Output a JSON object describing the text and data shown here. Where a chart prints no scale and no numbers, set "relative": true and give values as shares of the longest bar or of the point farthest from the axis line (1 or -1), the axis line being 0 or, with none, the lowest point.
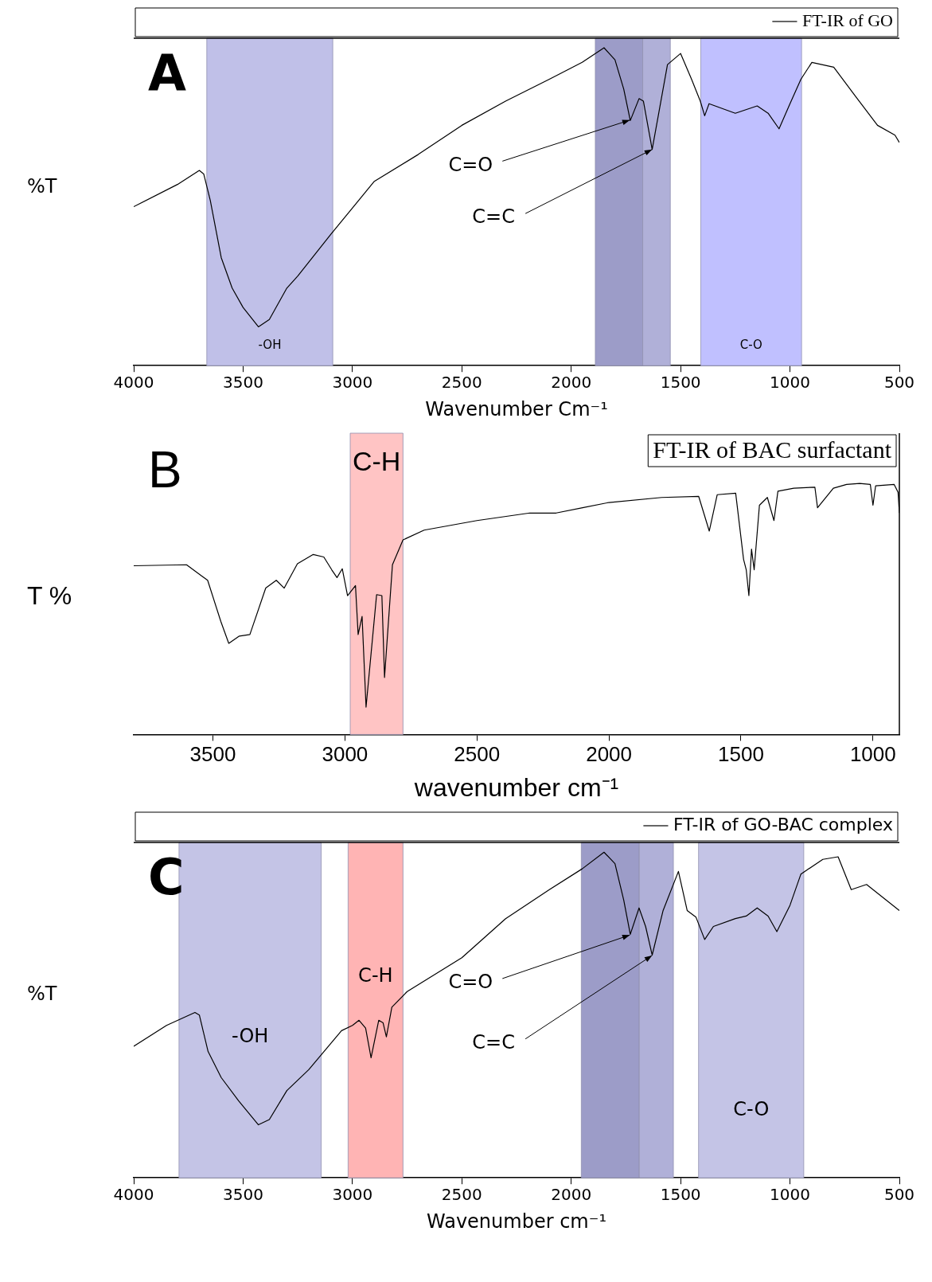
{
  "chart_data": [
    {
      "type": "line",
      "title": "A",
      "xlabel": "Wavenumber Cm⁻¹",
      "ylabel": "%T",
      "relative": true,
      "xlim": [
        4000,
        500
      ],
      "xticks": [
        4000,
        3500,
        3000,
        2500,
        2000,
        1500,
        1000,
        500
      ],
      "legend": "top right",
      "series": [
        {
          "name": "FT-IR of GO",
          "color": "#000000",
          "x": [
            4000,
            3800,
            3700,
            3680,
            3650,
            3600,
            3550,
            3500,
            3430,
            3380,
            3300,
            3250,
            3100,
            2900,
            2700,
            2500,
            2300,
            2100,
            1950,
            1850,
            1800,
            1760,
            1730,
            1690,
            1670,
            1630,
            1600,
            1560,
            1500,
            1450,
            1410,
            1390,
            1370,
            1250,
            1150,
            1100,
            1050,
            1000,
            950,
            900,
            800,
            700,
            600,
            520,
            500
          ],
          "values": [
            0.5,
            0.57,
            0.614,
            0.603,
            0.52,
            0.34,
            0.244,
            0.183,
            0.122,
            0.145,
            0.244,
            0.282,
            0.412,
            0.58,
            0.664,
            0.756,
            0.832,
            0.901,
            0.954,
            1,
            0.962,
            0.87,
            0.771,
            0.84,
            0.832,
            0.68,
            0.794,
            0.947,
            0.982,
            0.901,
            0.832,
            0.786,
            0.824,
            0.794,
            0.817,
            0.794,
            0.745,
            0.824,
            0.901,
            0.954,
            0.939,
            0.847,
            0.756,
            0.725,
            0.702
          ]
        }
      ],
      "bands": [
        {
          "axis": "x",
          "from": 3666,
          "to": 3090,
          "label": "-OH",
          "color": "#c0c0e8"
        },
        {
          "axis": "x",
          "from": 1890,
          "to": 1673,
          "color": "#9c9cc8"
        },
        {
          "axis": "x",
          "from": 1673,
          "to": 1547,
          "color": "#b0b0d8"
        },
        {
          "axis": "x",
          "from": 1408,
          "to": 947,
          "label": "C-O",
          "color": "#c0c0ff"
        }
      ],
      "annotations": [
        "C=O",
        "C=C"
      ]
    },
    {
      "type": "line",
      "title": "B",
      "xlabel": "wavenumber cm⁻¹",
      "ylabel": "T %",
      "relative": true,
      "xlim": [
        3800,
        900
      ],
      "xticks": [
        3500,
        3000,
        2500,
        2000,
        1500,
        1000
      ],
      "series": [
        {
          "color": "#000000",
          "x": [
            3800,
            3600,
            3520,
            3470,
            3440,
            3400,
            3360,
            3300,
            3260,
            3230,
            3180,
            3120,
            3080,
            3050,
            3030,
            3010,
            2990,
            2960,
            2950,
            2935,
            2920,
            2880,
            2860,
            2850,
            2820,
            2780,
            2700,
            2500,
            2300,
            2200,
            2100,
            2000,
            1800,
            1660,
            1620,
            1590,
            1520,
            1490,
            1480,
            1470,
            1460,
            1450,
            1430,
            1400,
            1375,
            1360,
            1300,
            1220,
            1210,
            1150,
            1100,
            1050,
            1010,
            1000,
            990,
            920,
            905,
            900
          ],
          "values": [
            0.672,
            0.676,
            0.614,
            0.45,
            0.363,
            0.392,
            0.398,
            0.583,
            0.614,
            0.583,
            0.68,
            0.717,
            0.707,
            0.656,
            0.625,
            0.66,
            0.553,
            0.593,
            0.398,
            0.47,
            0.109,
            0.557,
            0.553,
            0.227,
            0.676,
            0.775,
            0.814,
            0.852,
            0.882,
            0.882,
            0.903,
            0.924,
            0.944,
            0.948,
            0.81,
            0.955,
            0.961,
            0.697,
            0.656,
            0.553,
            0.738,
            0.656,
            0.913,
            0.944,
            0.852,
            0.969,
            0.981,
            0.985,
            0.903,
            0.981,
            0.996,
            1,
            0.996,
            0.913,
            0.99,
            0.996,
            0.965,
            0.882
          ]
        }
      ],
      "bands": [
        {
          "axis": "x",
          "from": 2980,
          "to": 2780,
          "label": "C-H",
          "color": "#ffc4c4"
        }
      ],
      "annotations": [
        "FT-IR of BAC surfactant"
      ]
    },
    {
      "type": "line",
      "title": "C",
      "xlabel": "Wavenumber cm⁻¹",
      "ylabel": "%T",
      "relative": true,
      "xlim": [
        4000,
        500
      ],
      "xticks": [
        4000,
        3500,
        3000,
        2500,
        2000,
        1500,
        1000,
        500
      ],
      "legend": "top right",
      "series": [
        {
          "name": "FT-IR of GO-BAC complex",
          "color": "#000000",
          "x": [
            4000,
            3850,
            3720,
            3700,
            3660,
            3600,
            3520,
            3430,
            3380,
            3300,
            3200,
            3050,
            3000,
            2970,
            2940,
            2915,
            2880,
            2860,
            2845,
            2820,
            2750,
            2500,
            2300,
            2100,
            1950,
            1850,
            1800,
            1760,
            1730,
            1690,
            1660,
            1630,
            1580,
            1510,
            1470,
            1430,
            1390,
            1350,
            1250,
            1200,
            1150,
            1100,
            1060,
            1000,
            950,
            850,
            780,
            720,
            650,
            500
          ],
          "values": [
            0.404,
            0.468,
            0.508,
            0.5,
            0.388,
            0.308,
            0.236,
            0.163,
            0.179,
            0.268,
            0.332,
            0.452,
            0.468,
            0.484,
            0.46,
            0.369,
            0.484,
            0.476,
            0.433,
            0.524,
            0.572,
            0.676,
            0.796,
            0.885,
            0.949,
            1,
            0.965,
            0.853,
            0.748,
            0.829,
            0.772,
            0.684,
            0.821,
            0.941,
            0.821,
            0.801,
            0.732,
            0.772,
            0.796,
            0.804,
            0.829,
            0.804,
            0.756,
            0.837,
            0.933,
            0.978,
            0.986,
            0.885,
            0.901,
            0.821
          ]
        }
      ],
      "bands": [
        {
          "axis": "x",
          "from": 3793,
          "to": 3143,
          "label": "-OH",
          "color": "#c4c4e6"
        },
        {
          "axis": "x",
          "from": 3020,
          "to": 2769,
          "label": "C-H",
          "color": "#ffb4b4"
        },
        {
          "axis": "x",
          "from": 1954,
          "to": 1689,
          "color": "#9c9cc8"
        },
        {
          "axis": "x",
          "from": 1689,
          "to": 1533,
          "color": "#b0b0d8"
        },
        {
          "axis": "x",
          "from": 1418,
          "to": 937,
          "label": "C-O",
          "color": "#c4c4e6"
        }
      ],
      "annotations": [
        "C=O",
        "C=C"
      ]
    }
  ]
}
